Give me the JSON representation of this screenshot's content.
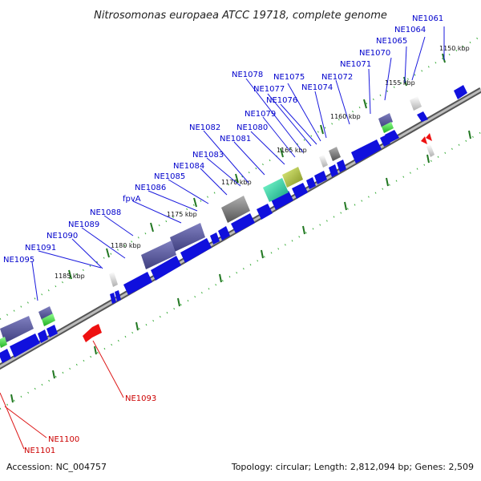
{
  "title": "Nitrosomonas europaea ATCC 19718, complete genome",
  "footer": {
    "accession": "Accession: NC_004757",
    "summary": "Topology: circular; Length: 2,812,094 bp; Genes: 2,509"
  },
  "colors": {
    "forward_gene": "#0000ee",
    "reverse_gene": "#ee0000",
    "forward_label": "#0000cc",
    "reverse_label": "#cc0000",
    "backbone": "#888888",
    "tick": "#228822"
  },
  "ticks": [
    "1150 kbp",
    "1155 kbp",
    "1160 kbp",
    "1165 kbp",
    "1170 kbp",
    "1175 kbp",
    "1180 kbp",
    "1185 kbp"
  ],
  "forward_labels": [
    "NE1061",
    "NE1064",
    "NE1065",
    "NE1070",
    "NE1071",
    "NE1072",
    "NE1074",
    "NE1075",
    "NE1076",
    "NE1077",
    "NE1078",
    "NE1079",
    "NE1080",
    "NE1081",
    "NE1082",
    "NE1083",
    "NE1084",
    "NE1085",
    "NE1086",
    "fpvA",
    "NE1088",
    "NE1089",
    "NE1090",
    "NE1091",
    "NE1095"
  ],
  "reverse_labels": [
    "NE1093",
    "NE1100",
    "NE1101"
  ]
}
